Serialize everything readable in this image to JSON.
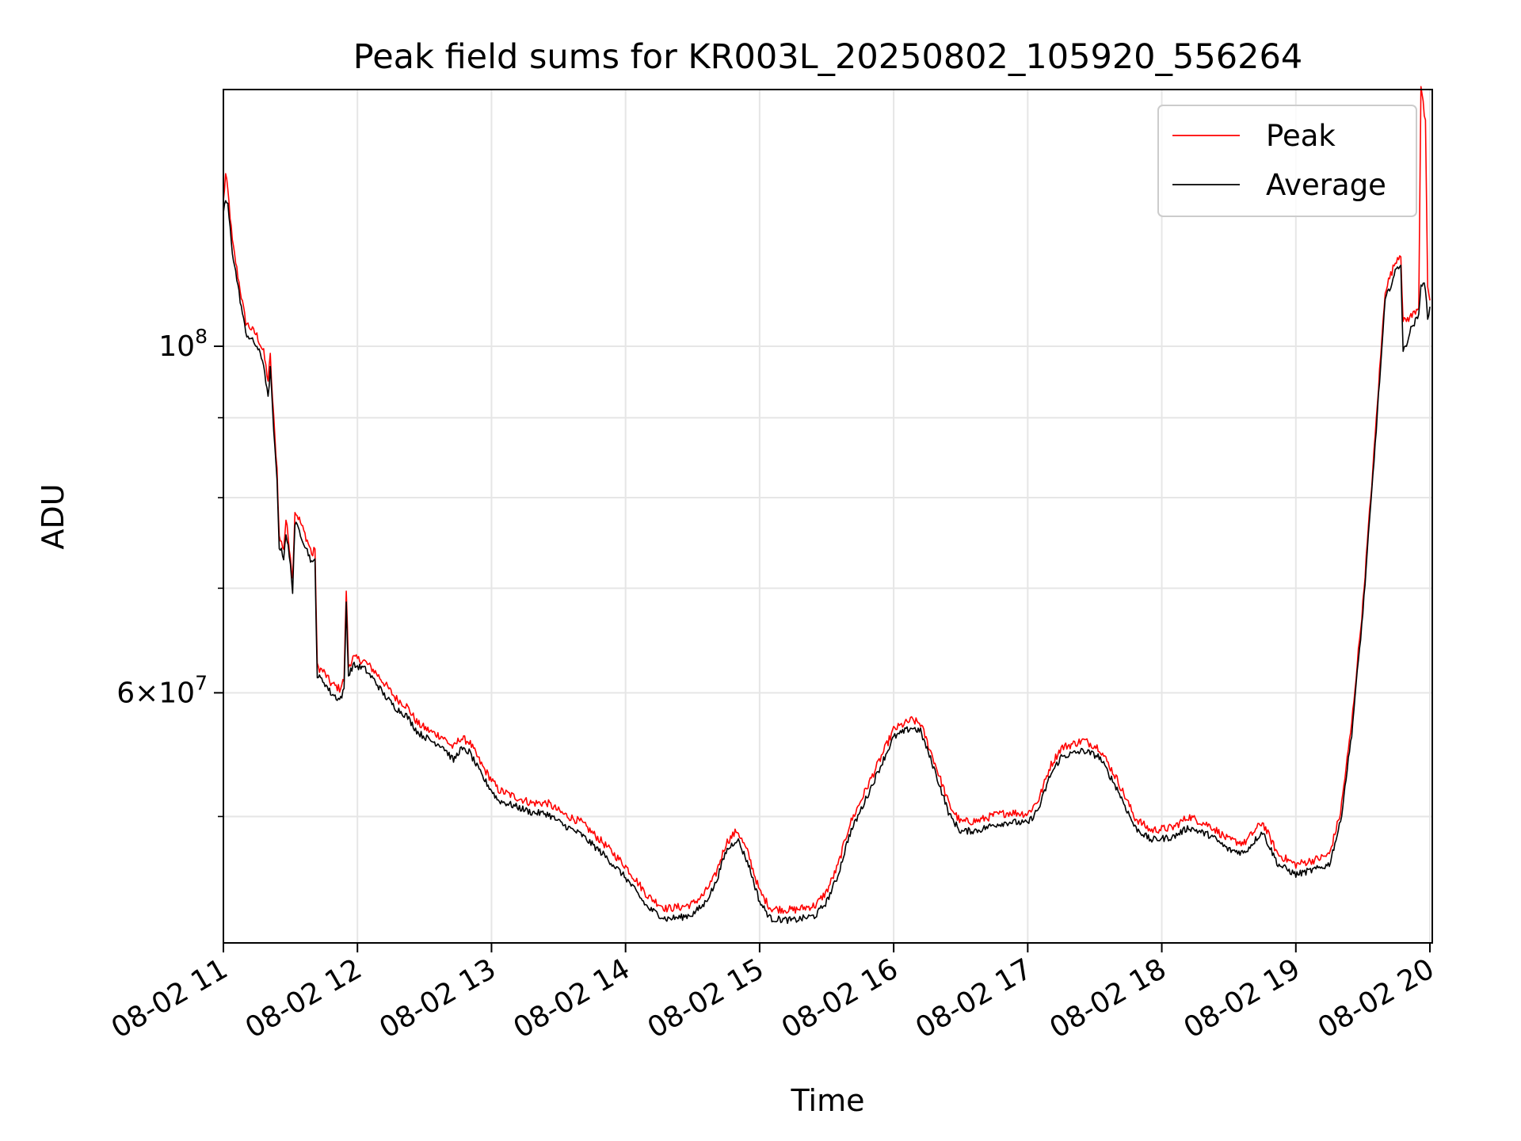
{
  "chart_data": {
    "type": "line",
    "title": "Peak field sums for KR003L_20250802_105920_556264",
    "xlabel": "Time",
    "ylabel": "ADU",
    "x_range": [
      "2025-08-02 11:00",
      "2025-08-02 20:00"
    ],
    "x_ticks": [
      {
        "value": "2025-08-02 11:00",
        "label": "08-02 11"
      },
      {
        "value": "2025-08-02 12:00",
        "label": "08-02 12"
      },
      {
        "value": "2025-08-02 13:00",
        "label": "08-02 13"
      },
      {
        "value": "2025-08-02 14:00",
        "label": "08-02 14"
      },
      {
        "value": "2025-08-02 15:00",
        "label": "08-02 15"
      },
      {
        "value": "2025-08-02 16:00",
        "label": "08-02 16"
      },
      {
        "value": "2025-08-02 17:00",
        "label": "08-02 17"
      },
      {
        "value": "2025-08-02 18:00",
        "label": "08-02 18"
      },
      {
        "value": "2025-08-02 19:00",
        "label": "08-02 19"
      },
      {
        "value": "2025-08-02 20:00",
        "label": "08-02 20"
      }
    ],
    "y_scale": "log",
    "ylim": [
      41500000,
      146000000
    ],
    "y_major_ticks": [
      {
        "value": 60000000,
        "base": "6",
        "exp": "7"
      },
      {
        "value": 100000000,
        "base": "10",
        "exp": "8"
      }
    ],
    "y_minor_ticks": [
      50000000,
      70000000,
      80000000,
      90000000
    ],
    "grid": true,
    "legend": {
      "position": "upper right",
      "entries": [
        "Peak",
        "Average"
      ]
    },
    "series": [
      {
        "name": "Peak",
        "color": "#ff0000",
        "points": [
          [
            "2025-08-02 11:00",
            123000000
          ],
          [
            "2025-08-02 11:01",
            128000000
          ],
          [
            "2025-08-02 11:02",
            125000000
          ],
          [
            "2025-08-02 11:04",
            116000000
          ],
          [
            "2025-08-02 11:08",
            107000000
          ],
          [
            "2025-08-02 11:10",
            103000000
          ],
          [
            "2025-08-02 11:15",
            101000000
          ],
          [
            "2025-08-02 11:18",
            98500000
          ],
          [
            "2025-08-02 11:20",
            94500000
          ],
          [
            "2025-08-02 11:21",
            98000000
          ],
          [
            "2025-08-02 11:22",
            92000000
          ],
          [
            "2025-08-02 11:23",
            87000000
          ],
          [
            "2025-08-02 11:24",
            83000000
          ],
          [
            "2025-08-02 11:25",
            75000000
          ],
          [
            "2025-08-02 11:27",
            73800000
          ],
          [
            "2025-08-02 11:28",
            77000000
          ],
          [
            "2025-08-02 11:29",
            75000000
          ],
          [
            "2025-08-02 11:30",
            73000000
          ],
          [
            "2025-08-02 11:31",
            70500000
          ],
          [
            "2025-08-02 11:32",
            78000000
          ],
          [
            "2025-08-02 11:34",
            77000000
          ],
          [
            "2025-08-02 11:37",
            75000000
          ],
          [
            "2025-08-02 11:40",
            73000000
          ],
          [
            "2025-08-02 11:41",
            74000000
          ],
          [
            "2025-08-02 11:42",
            62000000
          ],
          [
            "2025-08-02 11:45",
            61500000
          ],
          [
            "2025-08-02 11:48",
            60500000
          ],
          [
            "2025-08-02 11:52",
            60000000
          ],
          [
            "2025-08-02 11:54",
            60800000
          ],
          [
            "2025-08-02 11:55",
            69500000
          ],
          [
            "2025-08-02 11:56",
            62000000
          ],
          [
            "2025-08-02 11:58",
            62800000
          ],
          [
            "2025-08-02 12:03",
            62500000
          ],
          [
            "2025-08-02 12:08",
            61500000
          ],
          [
            "2025-08-02 12:12",
            60500000
          ],
          [
            "2025-08-02 12:17",
            59200000
          ],
          [
            "2025-08-02 12:22",
            58500000
          ],
          [
            "2025-08-02 12:27",
            57000000
          ],
          [
            "2025-08-02 12:33",
            56300000
          ],
          [
            "2025-08-02 12:38",
            55900000
          ],
          [
            "2025-08-02 12:43",
            55000000
          ],
          [
            "2025-08-02 12:46",
            55800000
          ],
          [
            "2025-08-02 12:50",
            55500000
          ],
          [
            "2025-08-02 12:56",
            53500000
          ],
          [
            "2025-08-02 13:03",
            51700000
          ],
          [
            "2025-08-02 13:10",
            51200000
          ],
          [
            "2025-08-02 13:18",
            50700000
          ],
          [
            "2025-08-02 13:25",
            50700000
          ],
          [
            "2025-08-02 13:32",
            49900000
          ],
          [
            "2025-08-02 13:40",
            49300000
          ],
          [
            "2025-08-02 13:50",
            47800000
          ],
          [
            "2025-08-02 14:00",
            46200000
          ],
          [
            "2025-08-02 14:10",
            44200000
          ],
          [
            "2025-08-02 14:18",
            43400000
          ],
          [
            "2025-08-02 14:25",
            43500000
          ],
          [
            "2025-08-02 14:30",
            43700000
          ],
          [
            "2025-08-02 14:35",
            44300000
          ],
          [
            "2025-08-02 14:40",
            45500000
          ],
          [
            "2025-08-02 14:45",
            47800000
          ],
          [
            "2025-08-02 14:50",
            48700000
          ],
          [
            "2025-08-02 14:55",
            47000000
          ],
          [
            "2025-08-02 15:00",
            44500000
          ],
          [
            "2025-08-02 15:05",
            43400000
          ],
          [
            "2025-08-02 15:15",
            43300000
          ],
          [
            "2025-08-02 15:25",
            43600000
          ],
          [
            "2025-08-02 15:30",
            44500000
          ],
          [
            "2025-08-02 15:35",
            46200000
          ],
          [
            "2025-08-02 15:40",
            49000000
          ],
          [
            "2025-08-02 15:47",
            51500000
          ],
          [
            "2025-08-02 15:55",
            54500000
          ],
          [
            "2025-08-02 16:00",
            56500000
          ],
          [
            "2025-08-02 16:08",
            57300000
          ],
          [
            "2025-08-02 16:12",
            57000000
          ],
          [
            "2025-08-02 16:18",
            54000000
          ],
          [
            "2025-08-02 16:25",
            50500000
          ],
          [
            "2025-08-02 16:30",
            49300000
          ],
          [
            "2025-08-02 16:38",
            49400000
          ],
          [
            "2025-08-02 16:45",
            49800000
          ],
          [
            "2025-08-02 16:52",
            50000000
          ],
          [
            "2025-08-02 17:00",
            49900000
          ],
          [
            "2025-08-02 17:05",
            51000000
          ],
          [
            "2025-08-02 17:10",
            53500000
          ],
          [
            "2025-08-02 17:15",
            55000000
          ],
          [
            "2025-08-02 17:25",
            55600000
          ],
          [
            "2025-08-02 17:32",
            55000000
          ],
          [
            "2025-08-02 17:40",
            52500000
          ],
          [
            "2025-08-02 17:48",
            49600000
          ],
          [
            "2025-08-02 17:55",
            48700000
          ],
          [
            "2025-08-02 18:05",
            48900000
          ],
          [
            "2025-08-02 18:12",
            49700000
          ],
          [
            "2025-08-02 18:22",
            49000000
          ],
          [
            "2025-08-02 18:30",
            48000000
          ],
          [
            "2025-08-02 18:37",
            47800000
          ],
          [
            "2025-08-02 18:45",
            49300000
          ],
          [
            "2025-08-02 18:52",
            47000000
          ],
          [
            "2025-08-02 19:00",
            46300000
          ],
          [
            "2025-08-02 19:10",
            46700000
          ],
          [
            "2025-08-02 19:15",
            47000000
          ],
          [
            "2025-08-02 19:20",
            50000000
          ],
          [
            "2025-08-02 19:25",
            57000000
          ],
          [
            "2025-08-02 19:30",
            68000000
          ],
          [
            "2025-08-02 19:35",
            85000000
          ],
          [
            "2025-08-02 19:40",
            108000000
          ],
          [
            "2025-08-02 19:45",
            113000000
          ],
          [
            "2025-08-02 19:47",
            114000000
          ],
          [
            "2025-08-02 19:48",
            103000000
          ],
          [
            "2025-08-02 19:52",
            104000000
          ],
          [
            "2025-08-02 19:55",
            105500000
          ],
          [
            "2025-08-02 19:56",
            146000000
          ],
          [
            "2025-08-02 19:58",
            138000000
          ],
          [
            "2025-08-02 19:59",
            108000000
          ],
          [
            "2025-08-02 20:00",
            107000000
          ]
        ]
      },
      {
        "name": "Average",
        "color": "#000000",
        "points": [
          [
            "2025-08-02 11:00",
            122000000
          ],
          [
            "2025-08-02 11:01",
            124000000
          ],
          [
            "2025-08-02 11:02",
            123000000
          ],
          [
            "2025-08-02 11:04",
            115000000
          ],
          [
            "2025-08-02 11:08",
            106000000
          ],
          [
            "2025-08-02 11:10",
            102000000
          ],
          [
            "2025-08-02 11:15",
            100000000
          ],
          [
            "2025-08-02 11:18",
            97500000
          ],
          [
            "2025-08-02 11:20",
            92500000
          ],
          [
            "2025-08-02 11:21",
            97000000
          ],
          [
            "2025-08-02 11:22",
            91000000
          ],
          [
            "2025-08-02 11:23",
            86000000
          ],
          [
            "2025-08-02 11:24",
            82000000
          ],
          [
            "2025-08-02 11:25",
            74500000
          ],
          [
            "2025-08-02 11:27",
            73300000
          ],
          [
            "2025-08-02 11:28",
            76000000
          ],
          [
            "2025-08-02 11:29",
            74300000
          ],
          [
            "2025-08-02 11:30",
            72300000
          ],
          [
            "2025-08-02 11:31",
            69800000
          ],
          [
            "2025-08-02 11:32",
            77000000
          ],
          [
            "2025-08-02 11:34",
            76200000
          ],
          [
            "2025-08-02 11:37",
            74300000
          ],
          [
            "2025-08-02 11:40",
            72500000
          ],
          [
            "2025-08-02 11:41",
            73000000
          ],
          [
            "2025-08-02 11:42",
            61500000
          ],
          [
            "2025-08-02 11:45",
            61000000
          ],
          [
            "2025-08-02 11:48",
            60000000
          ],
          [
            "2025-08-02 11:52",
            59400000
          ],
          [
            "2025-08-02 11:54",
            60200000
          ],
          [
            "2025-08-02 11:55",
            68500000
          ],
          [
            "2025-08-02 11:56",
            61500000
          ],
          [
            "2025-08-02 11:58",
            62500000
          ],
          [
            "2025-08-02 12:03",
            62200000
          ],
          [
            "2025-08-02 12:08",
            61000000
          ],
          [
            "2025-08-02 12:12",
            59800000
          ],
          [
            "2025-08-02 12:17",
            58700000
          ],
          [
            "2025-08-02 12:22",
            58000000
          ],
          [
            "2025-08-02 12:27",
            56600000
          ],
          [
            "2025-08-02 12:33",
            55900000
          ],
          [
            "2025-08-02 12:38",
            55500000
          ],
          [
            "2025-08-02 12:43",
            54300000
          ],
          [
            "2025-08-02 12:46",
            55200000
          ],
          [
            "2025-08-02 12:50",
            55000000
          ],
          [
            "2025-08-02 12:56",
            53000000
          ],
          [
            "2025-08-02 13:03",
            51200000
          ],
          [
            "2025-08-02 13:10",
            50800000
          ],
          [
            "2025-08-02 13:18",
            50300000
          ],
          [
            "2025-08-02 13:25",
            50200000
          ],
          [
            "2025-08-02 13:32",
            49400000
          ],
          [
            "2025-08-02 13:40",
            48700000
          ],
          [
            "2025-08-02 13:50",
            47300000
          ],
          [
            "2025-08-02 14:00",
            45700000
          ],
          [
            "2025-08-02 14:10",
            43700000
          ],
          [
            "2025-08-02 14:18",
            43000000
          ],
          [
            "2025-08-02 14:25",
            43100000
          ],
          [
            "2025-08-02 14:30",
            43300000
          ],
          [
            "2025-08-02 14:35",
            43900000
          ],
          [
            "2025-08-02 14:40",
            45200000
          ],
          [
            "2025-08-02 14:45",
            47500000
          ],
          [
            "2025-08-02 14:50",
            48400000
          ],
          [
            "2025-08-02 14:55",
            46600000
          ],
          [
            "2025-08-02 15:00",
            44100000
          ],
          [
            "2025-08-02 15:05",
            43000000
          ],
          [
            "2025-08-02 15:15",
            42900000
          ],
          [
            "2025-08-02 15:25",
            43200000
          ],
          [
            "2025-08-02 15:30",
            44100000
          ],
          [
            "2025-08-02 15:35",
            45800000
          ],
          [
            "2025-08-02 15:40",
            48600000
          ],
          [
            "2025-08-02 15:47",
            51100000
          ],
          [
            "2025-08-02 15:55",
            54200000
          ],
          [
            "2025-08-02 16:00",
            56200000
          ],
          [
            "2025-08-02 16:08",
            57000000
          ],
          [
            "2025-08-02 16:12",
            56700000
          ],
          [
            "2025-08-02 16:18",
            53700000
          ],
          [
            "2025-08-02 16:25",
            50100000
          ],
          [
            "2025-08-02 16:30",
            48900000
          ],
          [
            "2025-08-02 16:38",
            49000000
          ],
          [
            "2025-08-02 16:45",
            49400000
          ],
          [
            "2025-08-02 16:52",
            49600000
          ],
          [
            "2025-08-02 17:00",
            49500000
          ],
          [
            "2025-08-02 17:05",
            50600000
          ],
          [
            "2025-08-02 17:10",
            53100000
          ],
          [
            "2025-08-02 17:15",
            54600000
          ],
          [
            "2025-08-02 17:25",
            55100000
          ],
          [
            "2025-08-02 17:32",
            54600000
          ],
          [
            "2025-08-02 17:40",
            52100000
          ],
          [
            "2025-08-02 17:48",
            49200000
          ],
          [
            "2025-08-02 17:55",
            48300000
          ],
          [
            "2025-08-02 18:05",
            48500000
          ],
          [
            "2025-08-02 18:12",
            49200000
          ],
          [
            "2025-08-02 18:22",
            48600000
          ],
          [
            "2025-08-02 18:30",
            47600000
          ],
          [
            "2025-08-02 18:37",
            47400000
          ],
          [
            "2025-08-02 18:45",
            48900000
          ],
          [
            "2025-08-02 18:52",
            46600000
          ],
          [
            "2025-08-02 19:00",
            45900000
          ],
          [
            "2025-08-02 19:10",
            46300000
          ],
          [
            "2025-08-02 19:15",
            46600000
          ],
          [
            "2025-08-02 19:20",
            49600000
          ],
          [
            "2025-08-02 19:25",
            56500000
          ],
          [
            "2025-08-02 19:30",
            67500000
          ],
          [
            "2025-08-02 19:35",
            84500000
          ],
          [
            "2025-08-02 19:40",
            107000000
          ],
          [
            "2025-08-02 19:45",
            112000000
          ],
          [
            "2025-08-02 19:47",
            113000000
          ],
          [
            "2025-08-02 19:48",
            99000000
          ],
          [
            "2025-08-02 19:52",
            103000000
          ],
          [
            "2025-08-02 19:55",
            104500000
          ],
          [
            "2025-08-02 19:56",
            110000000
          ],
          [
            "2025-08-02 19:58",
            109000000
          ],
          [
            "2025-08-02 19:59",
            104000000
          ],
          [
            "2025-08-02 20:00",
            106000000
          ]
        ]
      }
    ]
  }
}
